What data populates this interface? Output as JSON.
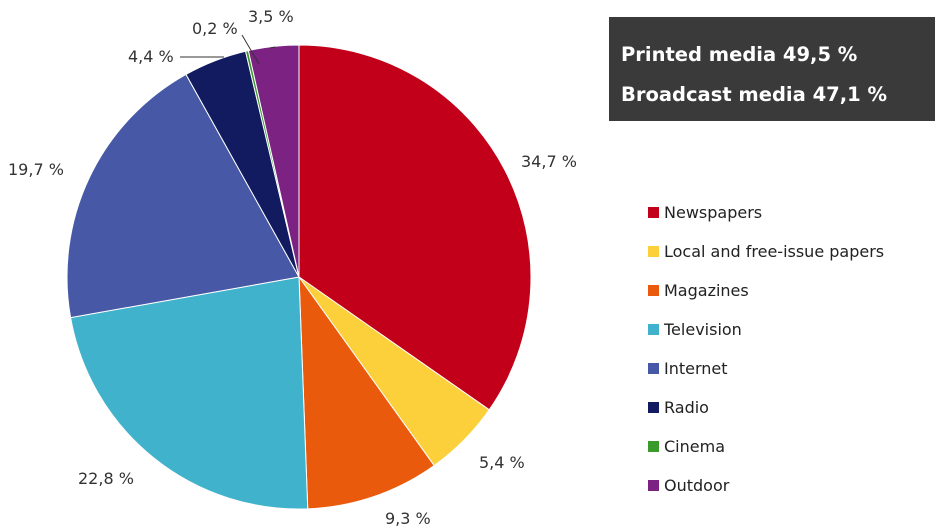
{
  "summary": {
    "printed": "Printed media 49,5 %",
    "broadcast": "Broadcast media 47,1 %"
  },
  "chart_data": {
    "type": "pie",
    "title": "",
    "start_angle_deg": 0,
    "direction": "clockwise",
    "legend_position": "right",
    "slices": [
      {
        "name": "Newspapers",
        "value": 34.7,
        "label": "34,7 %",
        "color": "#c2001a"
      },
      {
        "name": "Local and free-issue papers",
        "value": 5.4,
        "label": "5,4 %",
        "color": "#fcd03a"
      },
      {
        "name": "Magazines",
        "value": 9.3,
        "label": "9,3 %",
        "color": "#ea5a0c"
      },
      {
        "name": "Television",
        "value": 22.8,
        "label": "22,8 %",
        "color": "#40b2cc"
      },
      {
        "name": "Internet",
        "value": 19.7,
        "label": "19,7 %",
        "color": "#4658a6"
      },
      {
        "name": "Radio",
        "value": 4.4,
        "label": "4,4 %",
        "color": "#121a60"
      },
      {
        "name": "Cinema",
        "value": 0.2,
        "label": "0,2 %",
        "color": "#3a9a2a"
      },
      {
        "name": "Outdoor",
        "value": 3.5,
        "label": "3,5 %",
        "color": "#7b2282"
      }
    ]
  }
}
